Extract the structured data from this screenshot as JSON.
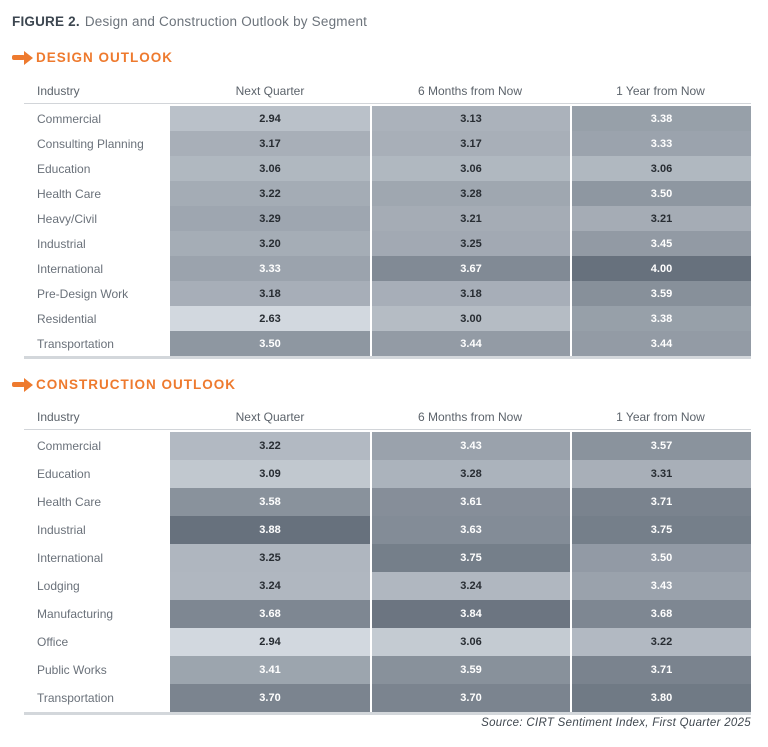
{
  "figure": {
    "label": "FIGURE 2.",
    "title": "Design and Construction Outlook by Segment"
  },
  "columns": [
    "Industry",
    "Next Quarter",
    "6 Months from Now",
    "1 Year from Now"
  ],
  "colors": {
    "accent_orange": "#ee7a2e",
    "heat_scale_light": "#d2d8df",
    "heat_scale_dark": "#67717d",
    "cell_text_dark": "#272c32",
    "cell_text_light": "#ffffff"
  },
  "sections": [
    {
      "heading": "DESIGN OUTLOOK",
      "rows": [
        {
          "industry": "Commercial",
          "cells": [
            {
              "value": "2.94",
              "bg": "#bac1c9",
              "light": false
            },
            {
              "value": "3.13",
              "bg": "#abb2bb",
              "light": false
            },
            {
              "value": "3.38",
              "bg": "#97a0a9",
              "light": true
            }
          ]
        },
        {
          "industry": "Consulting Planning",
          "cells": [
            {
              "value": "3.17",
              "bg": "#a8afb8",
              "light": false
            },
            {
              "value": "3.17",
              "bg": "#a8afb8",
              "light": false
            },
            {
              "value": "3.33",
              "bg": "#9ba3ad",
              "light": true
            }
          ]
        },
        {
          "industry": "Education",
          "cells": [
            {
              "value": "3.06",
              "bg": "#b0b8c0",
              "light": false
            },
            {
              "value": "3.06",
              "bg": "#b0b8c0",
              "light": false
            },
            {
              "value": "3.06",
              "bg": "#b0b8c0",
              "light": false
            }
          ]
        },
        {
          "industry": "Health Care",
          "cells": [
            {
              "value": "3.22",
              "bg": "#a4acb5",
              "light": false
            },
            {
              "value": "3.28",
              "bg": "#9fa7b0",
              "light": false
            },
            {
              "value": "3.50",
              "bg": "#8e97a1",
              "light": true
            }
          ]
        },
        {
          "industry": "Heavy/Civil",
          "cells": [
            {
              "value": "3.29",
              "bg": "#9ea6b0",
              "light": false
            },
            {
              "value": "3.21",
              "bg": "#a5acb5",
              "light": false
            },
            {
              "value": "3.21",
              "bg": "#a5acb5",
              "light": false
            }
          ]
        },
        {
          "industry": "Industrial",
          "cells": [
            {
              "value": "3.20",
              "bg": "#a5adb6",
              "light": false
            },
            {
              "value": "3.25",
              "bg": "#a2a9b3",
              "light": false
            },
            {
              "value": "3.45",
              "bg": "#929aa4",
              "light": true
            }
          ]
        },
        {
          "industry": "International",
          "cells": [
            {
              "value": "3.33",
              "bg": "#9ba3ad",
              "light": true
            },
            {
              "value": "3.67",
              "bg": "#818a95",
              "light": true
            },
            {
              "value": "4.00",
              "bg": "#67717d",
              "light": true
            }
          ]
        },
        {
          "industry": "Pre-Design Work",
          "cells": [
            {
              "value": "3.18",
              "bg": "#a7aeb8",
              "light": false
            },
            {
              "value": "3.18",
              "bg": "#a7aeb8",
              "light": false
            },
            {
              "value": "3.59",
              "bg": "#87909a",
              "light": true
            }
          ]
        },
        {
          "industry": "Residential",
          "cells": [
            {
              "value": "2.63",
              "bg": "#d2d8df",
              "light": false
            },
            {
              "value": "3.00",
              "bg": "#b5bcc4",
              "light": false
            },
            {
              "value": "3.38",
              "bg": "#97a0a9",
              "light": true
            }
          ]
        },
        {
          "industry": "Transportation",
          "cells": [
            {
              "value": "3.50",
              "bg": "#8e97a1",
              "light": true
            },
            {
              "value": "3.44",
              "bg": "#939ba5",
              "light": true
            },
            {
              "value": "3.44",
              "bg": "#939ba5",
              "light": true
            }
          ]
        }
      ]
    },
    {
      "heading": "CONSTRUCTION OUTLOOK",
      "rows": [
        {
          "industry": "Commercial",
          "cells": [
            {
              "value": "3.22",
              "bg": "#b2b9c2",
              "light": false
            },
            {
              "value": "3.43",
              "bg": "#9aa2ac",
              "light": true
            },
            {
              "value": "3.57",
              "bg": "#8a939d",
              "light": true
            }
          ]
        },
        {
          "industry": "Education",
          "cells": [
            {
              "value": "3.09",
              "bg": "#c1c8cf",
              "light": false
            },
            {
              "value": "3.28",
              "bg": "#abb3bc",
              "light": false
            },
            {
              "value": "3.31",
              "bg": "#a8afb8",
              "light": false
            }
          ]
        },
        {
          "industry": "Health Care",
          "cells": [
            {
              "value": "3.58",
              "bg": "#89929c",
              "light": true
            },
            {
              "value": "3.61",
              "bg": "#868e99",
              "light": true
            },
            {
              "value": "3.71",
              "bg": "#7a838e",
              "light": true
            }
          ]
        },
        {
          "industry": "Industrial",
          "cells": [
            {
              "value": "3.88",
              "bg": "#67717d",
              "light": true
            },
            {
              "value": "3.63",
              "bg": "#838c97",
              "light": true
            },
            {
              "value": "3.75",
              "bg": "#757f8a",
              "light": true
            }
          ]
        },
        {
          "industry": "International",
          "cells": [
            {
              "value": "3.25",
              "bg": "#afb6bf",
              "light": false
            },
            {
              "value": "3.75",
              "bg": "#757f8a",
              "light": true
            },
            {
              "value": "3.50",
              "bg": "#929aa5",
              "light": true
            }
          ]
        },
        {
          "industry": "Lodging",
          "cells": [
            {
              "value": "3.24",
              "bg": "#b0b7c0",
              "light": false
            },
            {
              "value": "3.24",
              "bg": "#b0b7c0",
              "light": false
            },
            {
              "value": "3.43",
              "bg": "#9aa2ac",
              "light": true
            }
          ]
        },
        {
          "industry": "Manufacturing",
          "cells": [
            {
              "value": "3.68",
              "bg": "#7e8792",
              "light": true
            },
            {
              "value": "3.84",
              "bg": "#6c7581",
              "light": true
            },
            {
              "value": "3.68",
              "bg": "#7e8792",
              "light": true
            }
          ]
        },
        {
          "industry": "Office",
          "cells": [
            {
              "value": "2.94",
              "bg": "#d2d8df",
              "light": false
            },
            {
              "value": "3.06",
              "bg": "#c4cbd2",
              "light": false
            },
            {
              "value": "3.22",
              "bg": "#b2b9c2",
              "light": false
            }
          ]
        },
        {
          "industry": "Public Works",
          "cells": [
            {
              "value": "3.41",
              "bg": "#9ca5ae",
              "light": true
            },
            {
              "value": "3.59",
              "bg": "#88919b",
              "light": true
            },
            {
              "value": "3.71",
              "bg": "#7a838e",
              "light": true
            }
          ]
        },
        {
          "industry": "Transportation",
          "cells": [
            {
              "value": "3.70",
              "bg": "#7b848f",
              "light": true
            },
            {
              "value": "3.70",
              "bg": "#7b848f",
              "light": true
            },
            {
              "value": "3.80",
              "bg": "#707a85",
              "light": true
            }
          ]
        }
      ]
    }
  ],
  "source": "Source: CIRT Sentiment Index, First Quarter 2025",
  "chart_data": [
    {
      "type": "heatmap",
      "title": "DESIGN OUTLOOK",
      "columns": [
        "Next Quarter",
        "6 Months from Now",
        "1 Year from Now"
      ],
      "rows": [
        "Commercial",
        "Consulting Planning",
        "Education",
        "Health Care",
        "Heavy/Civil",
        "Industrial",
        "International",
        "Pre-Design Work",
        "Residential",
        "Transportation"
      ],
      "values": [
        [
          2.94,
          3.13,
          3.38
        ],
        [
          3.17,
          3.17,
          3.33
        ],
        [
          3.06,
          3.06,
          3.06
        ],
        [
          3.22,
          3.28,
          3.5
        ],
        [
          3.29,
          3.21,
          3.21
        ],
        [
          3.2,
          3.25,
          3.45
        ],
        [
          3.33,
          3.67,
          4.0
        ],
        [
          3.18,
          3.18,
          3.59
        ],
        [
          2.63,
          3.0,
          3.38
        ],
        [
          3.5,
          3.44,
          3.44
        ]
      ],
      "value_range": [
        2.63,
        4.0
      ],
      "legend": "darker cell = higher value, per-table normalization"
    },
    {
      "type": "heatmap",
      "title": "CONSTRUCTION OUTLOOK",
      "columns": [
        "Next Quarter",
        "6 Months from Now",
        "1 Year from Now"
      ],
      "rows": [
        "Commercial",
        "Education",
        "Health Care",
        "Industrial",
        "International",
        "Lodging",
        "Manufacturing",
        "Office",
        "Public Works",
        "Transportation"
      ],
      "values": [
        [
          3.22,
          3.43,
          3.57
        ],
        [
          3.09,
          3.28,
          3.31
        ],
        [
          3.58,
          3.61,
          3.71
        ],
        [
          3.88,
          3.63,
          3.75
        ],
        [
          3.25,
          3.75,
          3.5
        ],
        [
          3.24,
          3.24,
          3.43
        ],
        [
          3.68,
          3.84,
          3.68
        ],
        [
          2.94,
          3.06,
          3.22
        ],
        [
          3.41,
          3.59,
          3.71
        ],
        [
          3.7,
          3.7,
          3.8
        ]
      ],
      "value_range": [
        2.94,
        3.88
      ],
      "legend": "darker cell = higher value, per-table normalization"
    }
  ]
}
